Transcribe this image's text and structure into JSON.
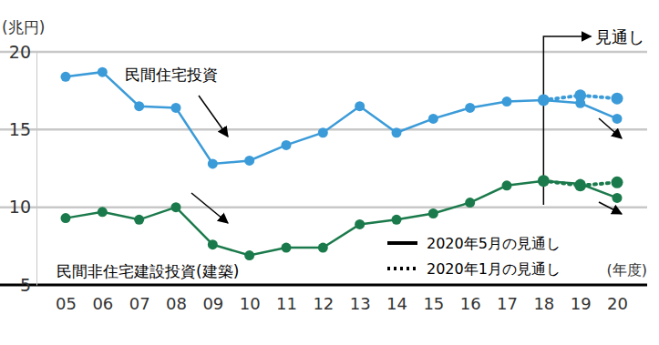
{
  "chart_data": {
    "type": "line",
    "y_label": "(兆円)",
    "x_label": "(年度)",
    "categories": [
      "05",
      "06",
      "07",
      "08",
      "09",
      "10",
      "11",
      "12",
      "13",
      "14",
      "15",
      "16",
      "17",
      "18",
      "19",
      "20"
    ],
    "ylim": [
      5,
      20
    ],
    "yticks": [
      5,
      10,
      15,
      20
    ],
    "grid": true,
    "series": [
      {
        "name": "民間住宅投資",
        "color": "#3b9bd8",
        "line_style": "solid",
        "marker": "circle",
        "values": [
          18.4,
          18.7,
          16.5,
          16.4,
          12.8,
          13.0,
          14.0,
          14.8,
          16.5,
          14.8,
          15.7,
          16.4,
          16.8,
          16.9,
          16.7,
          15.7
        ]
      },
      {
        "color": "#3b9bd8",
        "line_style": "dotted",
        "marker": "circle",
        "values": [
          null,
          null,
          null,
          null,
          null,
          null,
          null,
          null,
          null,
          null,
          null,
          null,
          null,
          16.9,
          17.2,
          17.0
        ]
      },
      {
        "name": "民間非住宅建設投資(建築)",
        "color": "#1b7a4b",
        "line_style": "solid",
        "marker": "circle",
        "values": [
          9.3,
          9.7,
          9.2,
          10.0,
          7.6,
          6.9,
          7.4,
          7.4,
          8.9,
          9.2,
          9.6,
          10.3,
          11.4,
          11.7,
          11.5,
          10.6
        ]
      },
      {
        "color": "#1b7a4b",
        "line_style": "dotted",
        "marker": "circle",
        "values": [
          null,
          null,
          null,
          null,
          null,
          null,
          null,
          null,
          null,
          null,
          null,
          null,
          null,
          11.7,
          11.4,
          11.6
        ]
      }
    ],
    "legend_entries": [
      {
        "label": "2020年5月の見通し",
        "line_style": "solid"
      },
      {
        "label": "2020年1月の見通し",
        "line_style": "dotted"
      }
    ],
    "annotations": [
      {
        "text": "見通し",
        "x": "18"
      }
    ]
  }
}
